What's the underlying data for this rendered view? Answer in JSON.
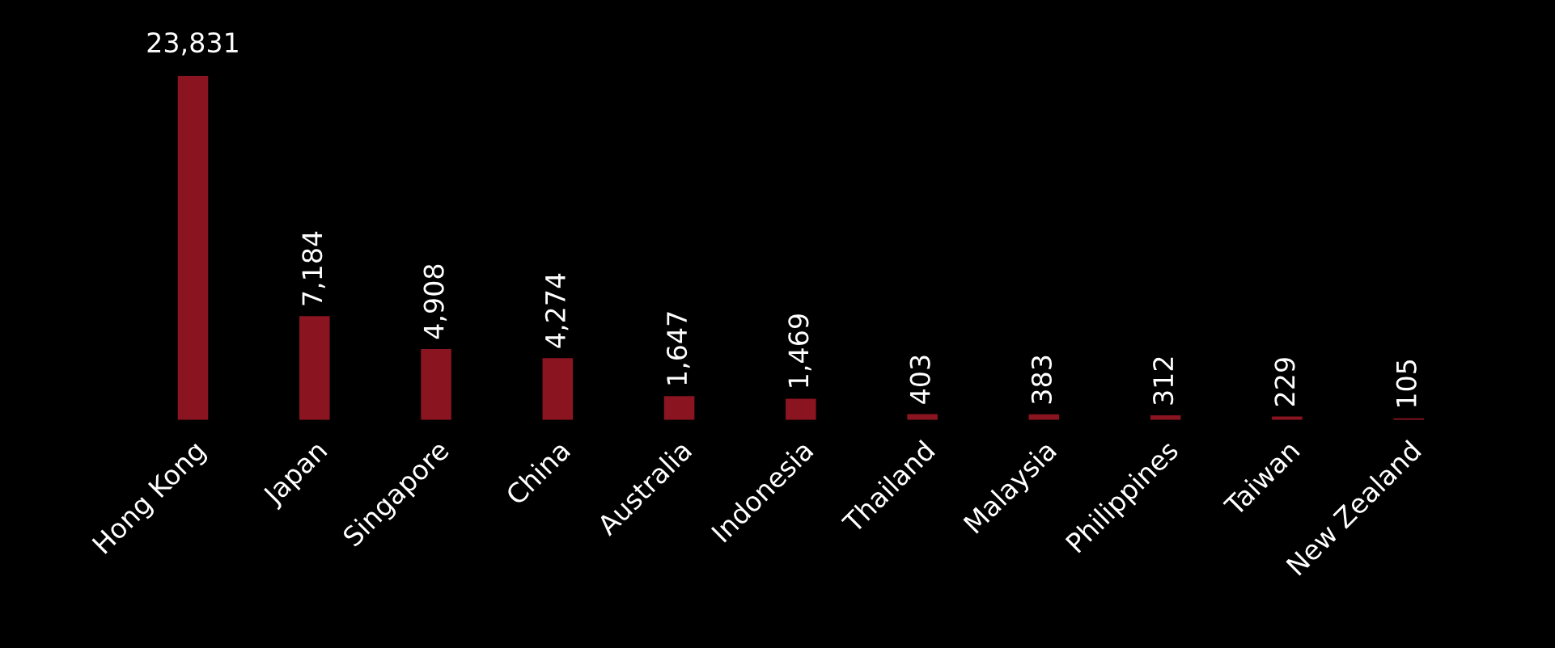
{
  "chart_data": {
    "type": "bar",
    "categories": [
      "Hong Kong",
      "Japan",
      "Singapore",
      "China",
      "Australia",
      "Indonesia",
      "Thailand",
      "Malaysia",
      "Philippines",
      "Taiwan",
      "New Zealand"
    ],
    "values": [
      23831,
      7184,
      4908,
      4274,
      1647,
      1469,
      403,
      383,
      312,
      229,
      105
    ],
    "color": "#8a1420",
    "data_labels": true,
    "value_labels": [
      "23,831",
      "7,184",
      "4,908",
      "4,274",
      "1,647",
      "1,469",
      "403",
      "383",
      "312",
      "229",
      "105"
    ]
  }
}
